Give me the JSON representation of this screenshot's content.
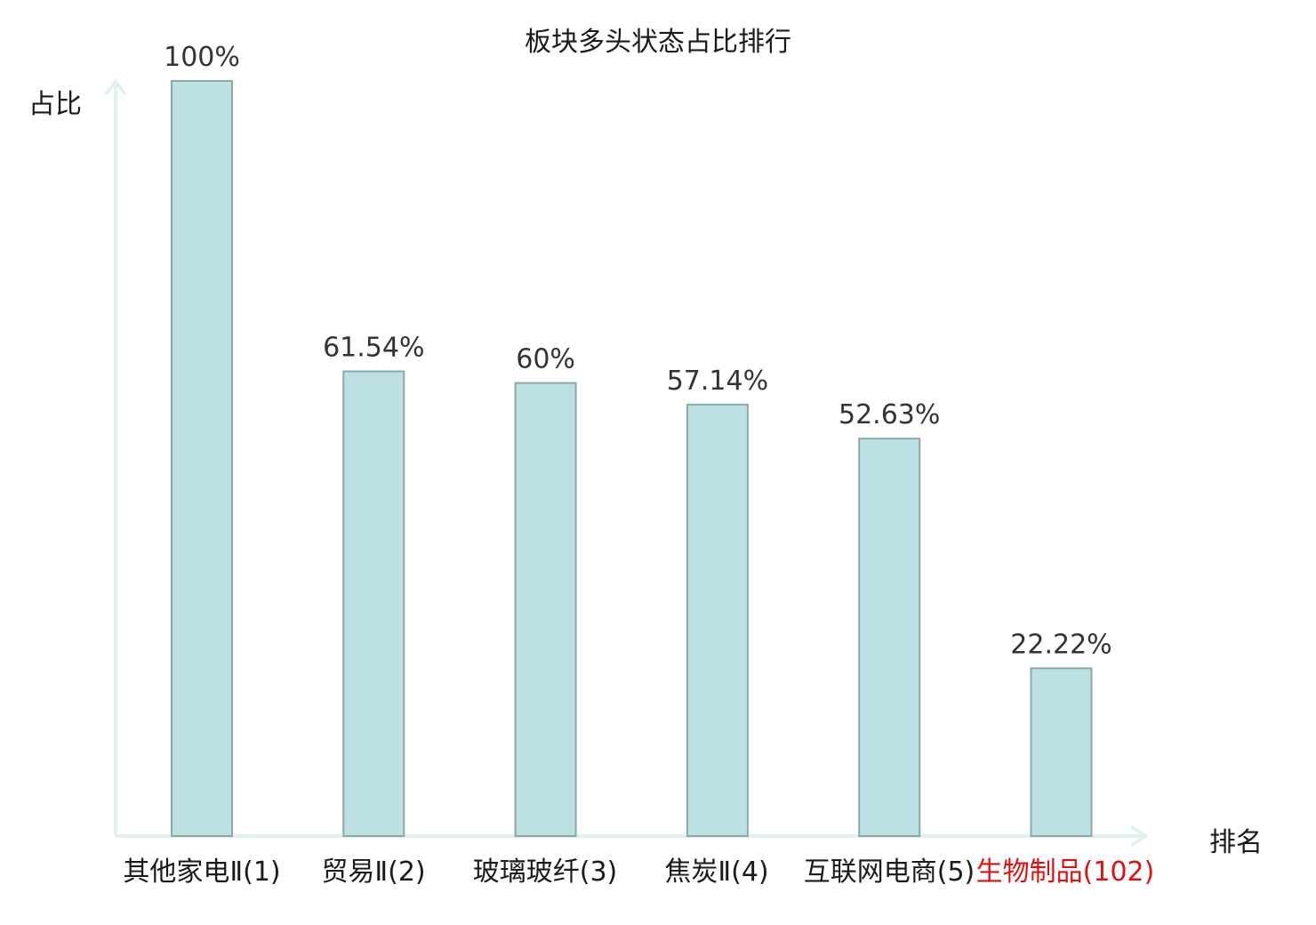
{
  "chart_data": {
    "type": "bar",
    "title": "板块多头状态占比排行",
    "ylabel": "占比",
    "xlabel": "排名",
    "categories": [
      "其他家电Ⅱ(1)",
      "贸易Ⅱ(2)",
      "玻璃玻纤(3)",
      "焦炭Ⅱ(4)",
      "互联网电商(5)",
      "生物制品(102)"
    ],
    "values": [
      100,
      61.54,
      60,
      57.14,
      52.63,
      22.22
    ],
    "value_labels": [
      "100%",
      "61.54%",
      "60%",
      "57.14%",
      "52.63%",
      "22.22%"
    ],
    "ylim": [
      0,
      100
    ],
    "highlight_index": 5,
    "colors": {
      "bar_fill": "#bde0e3",
      "bar_stroke": "#8aa9ad",
      "axis": "#dff2ef",
      "highlight_text": "#e01010",
      "text": "#1a1a1a"
    }
  }
}
